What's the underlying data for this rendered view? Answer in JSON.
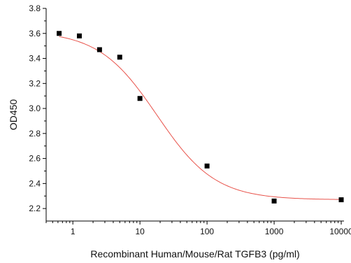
{
  "chart_data": {
    "type": "scatter",
    "title": "",
    "xlabel": "Recombinant Human/Mouse/Rat TGFB3 (pg/ml)",
    "ylabel": "OD450",
    "x_scale": "log",
    "xlim": [
      0.4,
      11000
    ],
    "ylim": [
      2.1,
      3.8
    ],
    "x_ticks": [
      1,
      10,
      100,
      1000,
      10000
    ],
    "x_tick_labels": [
      "1",
      "10",
      "100",
      "1000",
      "10000"
    ],
    "y_ticks": [
      2.2,
      2.4,
      2.6,
      2.8,
      3.0,
      3.2,
      3.4,
      3.6,
      3.8
    ],
    "y_tick_labels": [
      "2.2",
      "2.4",
      "2.6",
      "2.8",
      "3.0",
      "3.2",
      "3.4",
      "3.6",
      "3.8"
    ],
    "grid": false,
    "series": [
      {
        "x": [
          0.625,
          1.25,
          2.5,
          5,
          10,
          100,
          1000,
          10000
        ],
        "y": [
          3.6,
          3.58,
          3.47,
          3.41,
          3.08,
          2.54,
          2.26,
          2.27
        ],
        "marker": "square",
        "color": "#000000"
      }
    ],
    "fit_curve": {
      "model": "4PL",
      "top": 3.62,
      "bottom": 2.27,
      "ec50": 18,
      "hill": 1.0,
      "color": "#e8524a"
    }
  }
}
